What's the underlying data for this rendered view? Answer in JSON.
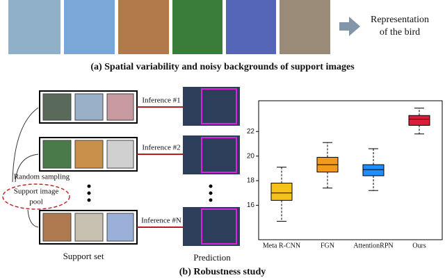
{
  "panel_a": {
    "representation": [
      "Representation",
      "of the bird"
    ],
    "caption": "(a) Spatial variability and noisy backgrounds of support images"
  },
  "panel_b": {
    "inferences": [
      "Inference #1",
      "Inference #2",
      "Inference #N"
    ],
    "random_sampling": "Random sampling",
    "pool": [
      "Support image",
      "pool"
    ],
    "support_set": "Support set",
    "prediction": "Prediction",
    "caption": "(b) Robustness study"
  },
  "chart_data": {
    "type": "box",
    "categories": [
      "Meta R-CNN",
      "FGN",
      "AttentionRPN",
      "Ours"
    ],
    "colors": [
      "#f5c21b",
      "#f39a1e",
      "#1e8fff",
      "#dc1c3c"
    ],
    "boxes": [
      {
        "low": 14.7,
        "q1": 16.4,
        "median": 17.0,
        "q3": 17.8,
        "high": 19.1
      },
      {
        "low": 17.4,
        "q1": 18.7,
        "median": 19.3,
        "q3": 19.9,
        "high": 21.1
      },
      {
        "low": 17.2,
        "q1": 18.4,
        "median": 18.9,
        "q3": 19.3,
        "high": 20.6
      },
      {
        "low": 21.8,
        "q1": 22.5,
        "median": 23.0,
        "q3": 23.3,
        "high": 23.9
      }
    ],
    "ylim": [
      13.2,
      24.5
    ],
    "yticks": [
      16,
      18,
      20,
      22
    ]
  }
}
